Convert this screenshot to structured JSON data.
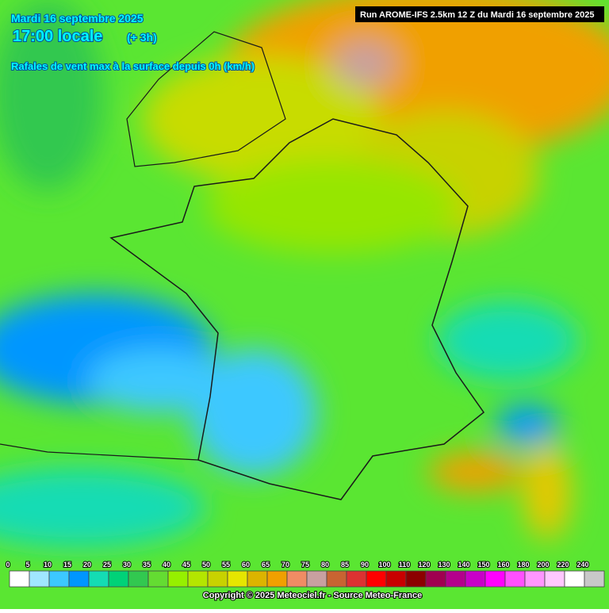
{
  "header": {
    "date": "Mardi 16 septembre 2025",
    "time": "17:00 locale",
    "lead": "(+ 3h)",
    "subtitle": "Rafales de vent max à la surface depuis 0h (km/h)"
  },
  "run": "Run AROME-IFS 2.5km 12 Z du Mardi 16 septembre 2025",
  "legend": {
    "values": [
      0,
      5,
      10,
      15,
      20,
      25,
      30,
      35,
      40,
      45,
      50,
      55,
      60,
      65,
      70,
      75,
      80,
      85,
      90,
      100,
      110,
      120,
      130,
      140,
      150,
      160,
      180,
      200,
      220,
      240
    ],
    "colors": [
      "#ffffff",
      "#a0e6ff",
      "#3cc8ff",
      "#0096ff",
      "#14dcb4",
      "#00d278",
      "#32c850",
      "#64dc32",
      "#96f000",
      "#b4e600",
      "#c8d200",
      "#e6e600",
      "#dcb400",
      "#f0a000",
      "#f08c64",
      "#c8a0a0",
      "#c86432",
      "#dc3232",
      "#ff0000",
      "#c80000",
      "#8c0000",
      "#a00050",
      "#b4008c",
      "#c800c8",
      "#ff00ff",
      "#ff50ff",
      "#ff96ff",
      "#ffc8ff",
      "#ffffff",
      "#c8c8c8"
    ]
  },
  "footer": "Copyright © 2025 Meteociel.fr - Source Meteo-France"
}
